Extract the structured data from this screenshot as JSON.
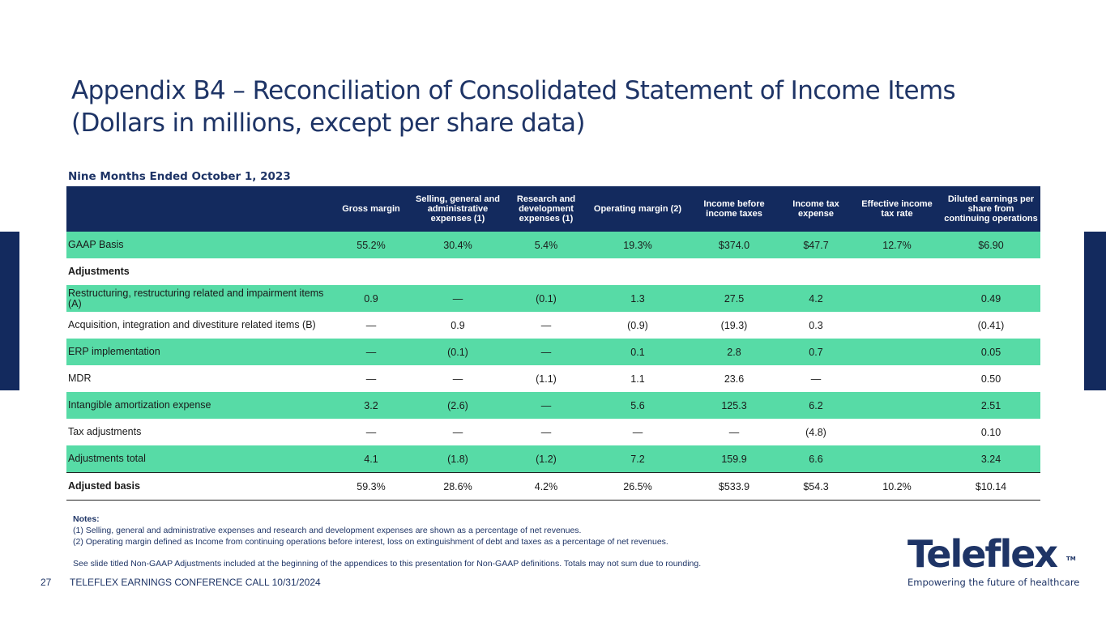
{
  "title": {
    "line1": "Appendix B4 – Reconciliation of Consolidated Statement of Income Items",
    "line2": "(Dollars in millions, except per share data)"
  },
  "period_label": "Nine Months Ended October 1, 2023",
  "table": {
    "columns": [
      "",
      "Gross margin",
      "Selling, general and administrative expenses (1)",
      "Research and development expenses (1)",
      "Operating margin (2)",
      "Income before income taxes",
      "Income tax expense",
      "Effective income tax rate",
      "Diluted earnings per share from continuing operations"
    ],
    "rows": [
      {
        "label": "GAAP Basis",
        "values": [
          "55.2%",
          "30.4%",
          "5.4%",
          "19.3%",
          "$374.0",
          "$47.7",
          "12.7%",
          "$6.90"
        ]
      },
      {
        "label": "Adjustments",
        "values": [
          "",
          "",
          "",
          "",
          "",
          "",
          "",
          ""
        ]
      },
      {
        "label": "Restructuring, restructuring related and impairment items (A)",
        "values": [
          "0.9",
          "—",
          "(0.1)",
          "1.3",
          "27.5",
          "4.2",
          "",
          "0.49"
        ]
      },
      {
        "label": "Acquisition, integration and divestiture related items (B)",
        "values": [
          "—",
          "0.9",
          "—",
          "(0.9)",
          "(19.3)",
          "0.3",
          "",
          "(0.41)"
        ]
      },
      {
        "label": "ERP implementation",
        "values": [
          "—",
          "(0.1)",
          "—",
          "0.1",
          "2.8",
          "0.7",
          "",
          "0.05"
        ]
      },
      {
        "label": "MDR",
        "values": [
          "—",
          "—",
          "(1.1)",
          "1.1",
          "23.6",
          "—",
          "",
          "0.50"
        ]
      },
      {
        "label": "Intangible amortization expense",
        "values": [
          "3.2",
          "(2.6)",
          "—",
          "5.6",
          "125.3",
          "6.2",
          "",
          "2.51"
        ]
      },
      {
        "label": "Tax adjustments",
        "values": [
          "—",
          "—",
          "—",
          "—",
          "—",
          "(4.8)",
          "",
          "0.10"
        ]
      },
      {
        "label": "Adjustments total",
        "values": [
          "4.1",
          "(1.8)",
          "(1.2)",
          "7.2",
          "159.9",
          "6.6",
          "",
          "3.24"
        ]
      },
      {
        "label": "Adjusted basis",
        "values": [
          "59.3%",
          "28.6%",
          "4.2%",
          "26.5%",
          "$533.9",
          "$54.3",
          "10.2%",
          "$10.14"
        ]
      }
    ]
  },
  "notes": {
    "heading": "Notes:",
    "note1": "(1) Selling, general and administrative expenses and research and development expenses are shown as a percentage of net revenues.",
    "note2": "(2) Operating margin defined as Income from continuing operations before interest, loss on extinguishment of debt and taxes as a percentage of net revenues.",
    "note3": "See slide titled Non-GAAP Adjustments included at the beginning of the appendices to this presentation for Non-GAAP definitions. Totals may not sum due to rounding."
  },
  "footer": {
    "page_number": "27",
    "text": "TELEFLEX EARNINGS CONFERENCE CALL 10/31/2024"
  },
  "logo": {
    "brand": "Teleflex",
    "trademark": "TM",
    "tagline": "Empowering the future of healthcare"
  },
  "colors": {
    "navy": "#132a5e",
    "title_blue": "#1e3466",
    "row_green": "#57dba6"
  }
}
